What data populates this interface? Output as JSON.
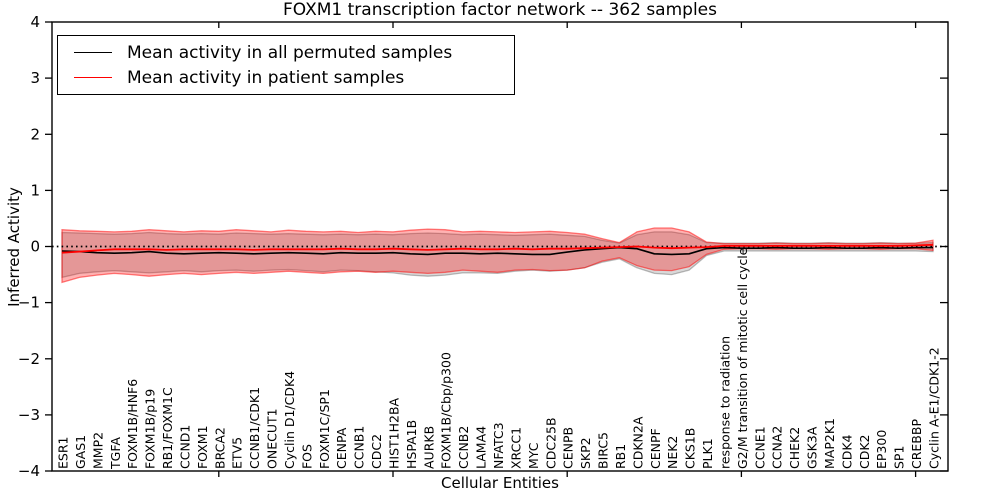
{
  "chart_data": {
    "type": "line",
    "title": "FOXM1 transcription factor network -- 362 samples",
    "xlabel": "Cellular Entities",
    "ylabel": "Inferred Activity",
    "ylim": [
      -4,
      4
    ],
    "yticks": [
      4,
      3,
      2,
      1,
      0,
      -1,
      -2,
      -3,
      -4
    ],
    "x_major_tick_indices": [
      9,
      19,
      29,
      39,
      49
    ],
    "grid": false,
    "legend_position": "upper left",
    "zero_line": {
      "value": 0,
      "style": "dotted",
      "color": "#000000"
    },
    "categories": [
      "ESR1",
      "GAS1",
      "MMP2",
      "TGFA",
      "FOXM1B/HNF6",
      "FOXM1B/p19",
      "RB1/FOXM1C",
      "CCND1",
      "FOXM1",
      "BRCA2",
      "ETV5",
      "CCNB1/CDK1",
      "ONECUT1",
      "Cyclin D1/CDK4",
      "FOS",
      "FOXM1C/SP1",
      "CENPA",
      "CCNB1",
      "CDC2",
      "HIST1H2BA",
      "HSPA1B",
      "AURKB",
      "FOXM1B/Cbp/p300",
      "CCNB2",
      "LAMA4",
      "NFATC3",
      "XRCC1",
      "MYC",
      "CDC25B",
      "CENPB",
      "SKP2",
      "BIRC5",
      "RB1",
      "CDKN2A",
      "CENPF",
      "NEK2",
      "CKS1B",
      "PLK1",
      "response to radiation",
      "G2/M transition of mitotic cell cycle",
      "CCNE1",
      "CCNA2",
      "CHEK2",
      "GSK3A",
      "MAP2K1",
      "CDK4",
      "CDK2",
      "EP300",
      "SP1",
      "CREBBP",
      "Cyclin A-E1/CDK1-2"
    ],
    "series": [
      {
        "name": "Mean activity in all permuted samples",
        "color": "#000000",
        "values": [
          -0.08,
          -0.09,
          -0.11,
          -0.12,
          -0.11,
          -0.09,
          -0.12,
          -0.13,
          -0.12,
          -0.11,
          -0.12,
          -0.13,
          -0.12,
          -0.11,
          -0.12,
          -0.13,
          -0.11,
          -0.12,
          -0.12,
          -0.11,
          -0.13,
          -0.14,
          -0.12,
          -0.12,
          -0.13,
          -0.12,
          -0.13,
          -0.14,
          -0.14,
          -0.1,
          -0.06,
          -0.04,
          -0.02,
          -0.04,
          -0.13,
          -0.14,
          -0.13,
          -0.04,
          -0.02,
          -0.03,
          -0.03,
          -0.02,
          -0.03,
          -0.03,
          -0.02,
          -0.03,
          -0.03,
          -0.02,
          -0.03,
          -0.02,
          -0.02
        ]
      },
      {
        "name": "Mean activity in patient samples",
        "color": "#ff0000",
        "values": [
          -0.11,
          -0.09,
          -0.07,
          -0.05,
          -0.05,
          -0.05,
          -0.06,
          -0.05,
          -0.05,
          -0.05,
          -0.05,
          -0.06,
          -0.05,
          -0.05,
          -0.05,
          -0.05,
          -0.04,
          -0.05,
          -0.05,
          -0.04,
          -0.05,
          -0.06,
          -0.05,
          -0.04,
          -0.05,
          -0.05,
          -0.04,
          -0.05,
          -0.04,
          -0.04,
          -0.03,
          -0.02,
          -0.01,
          0.0,
          -0.02,
          -0.03,
          -0.02,
          -0.01,
          0.01,
          0.01,
          0.01,
          0.01,
          0.01,
          0.01,
          0.01,
          0.01,
          0.01,
          0.01,
          0.01,
          0.02,
          0.03
        ]
      }
    ],
    "bands": [
      {
        "name": "permuted-samples-std-band",
        "fill": "rgba(0,0,0,0.15)",
        "edge": "rgba(0,0,0,0.25)",
        "upper": [
          0.25,
          0.24,
          0.23,
          0.22,
          0.23,
          0.25,
          0.23,
          0.22,
          0.23,
          0.22,
          0.24,
          0.23,
          0.22,
          0.23,
          0.22,
          0.21,
          0.22,
          0.21,
          0.22,
          0.21,
          0.23,
          0.24,
          0.23,
          0.21,
          0.22,
          0.21,
          0.2,
          0.21,
          0.22,
          0.2,
          0.18,
          0.11,
          0.06,
          0.21,
          0.26,
          0.26,
          0.21,
          0.07,
          0.06,
          0.06,
          0.06,
          0.07,
          0.06,
          0.06,
          0.07,
          0.06,
          0.06,
          0.07,
          0.06,
          0.06,
          0.07
        ],
        "lower": [
          -0.55,
          -0.48,
          -0.45,
          -0.43,
          -0.45,
          -0.47,
          -0.45,
          -0.43,
          -0.45,
          -0.43,
          -0.42,
          -0.44,
          -0.42,
          -0.41,
          -0.43,
          -0.45,
          -0.42,
          -0.43,
          -0.45,
          -0.47,
          -0.51,
          -0.53,
          -0.51,
          -0.47,
          -0.47,
          -0.48,
          -0.44,
          -0.42,
          -0.44,
          -0.42,
          -0.38,
          -0.28,
          -0.22,
          -0.38,
          -0.48,
          -0.5,
          -0.42,
          -0.16,
          -0.08,
          -0.08,
          -0.08,
          -0.08,
          -0.08,
          -0.08,
          -0.08,
          -0.08,
          -0.08,
          -0.08,
          -0.08,
          -0.08,
          -0.09
        ]
      },
      {
        "name": "patient-samples-std-band",
        "fill": "rgba(255,0,0,0.30)",
        "edge": "rgba(255,0,0,0.50)",
        "upper": [
          0.3,
          0.28,
          0.27,
          0.26,
          0.27,
          0.3,
          0.28,
          0.26,
          0.28,
          0.27,
          0.3,
          0.28,
          0.26,
          0.29,
          0.27,
          0.26,
          0.27,
          0.25,
          0.27,
          0.26,
          0.29,
          0.31,
          0.3,
          0.26,
          0.27,
          0.26,
          0.25,
          0.26,
          0.27,
          0.25,
          0.22,
          0.14,
          0.07,
          0.26,
          0.33,
          0.33,
          0.26,
          0.08,
          0.05,
          0.05,
          0.05,
          0.06,
          0.05,
          0.05,
          0.06,
          0.05,
          0.05,
          0.06,
          0.05,
          0.06,
          0.11
        ],
        "lower": [
          -0.64,
          -0.55,
          -0.51,
          -0.48,
          -0.5,
          -0.53,
          -0.5,
          -0.48,
          -0.5,
          -0.48,
          -0.46,
          -0.48,
          -0.46,
          -0.44,
          -0.46,
          -0.48,
          -0.45,
          -0.44,
          -0.46,
          -0.44,
          -0.46,
          -0.48,
          -0.46,
          -0.42,
          -0.44,
          -0.46,
          -0.42,
          -0.41,
          -0.43,
          -0.42,
          -0.38,
          -0.26,
          -0.2,
          -0.34,
          -0.42,
          -0.43,
          -0.36,
          -0.14,
          -0.05,
          -0.04,
          -0.04,
          -0.05,
          -0.04,
          -0.04,
          -0.05,
          -0.04,
          -0.04,
          -0.05,
          -0.04,
          -0.04,
          -0.07
        ]
      }
    ]
  },
  "colors": {
    "background": "#ffffff",
    "axis": "#000000",
    "accent_red": "#ff0000"
  }
}
